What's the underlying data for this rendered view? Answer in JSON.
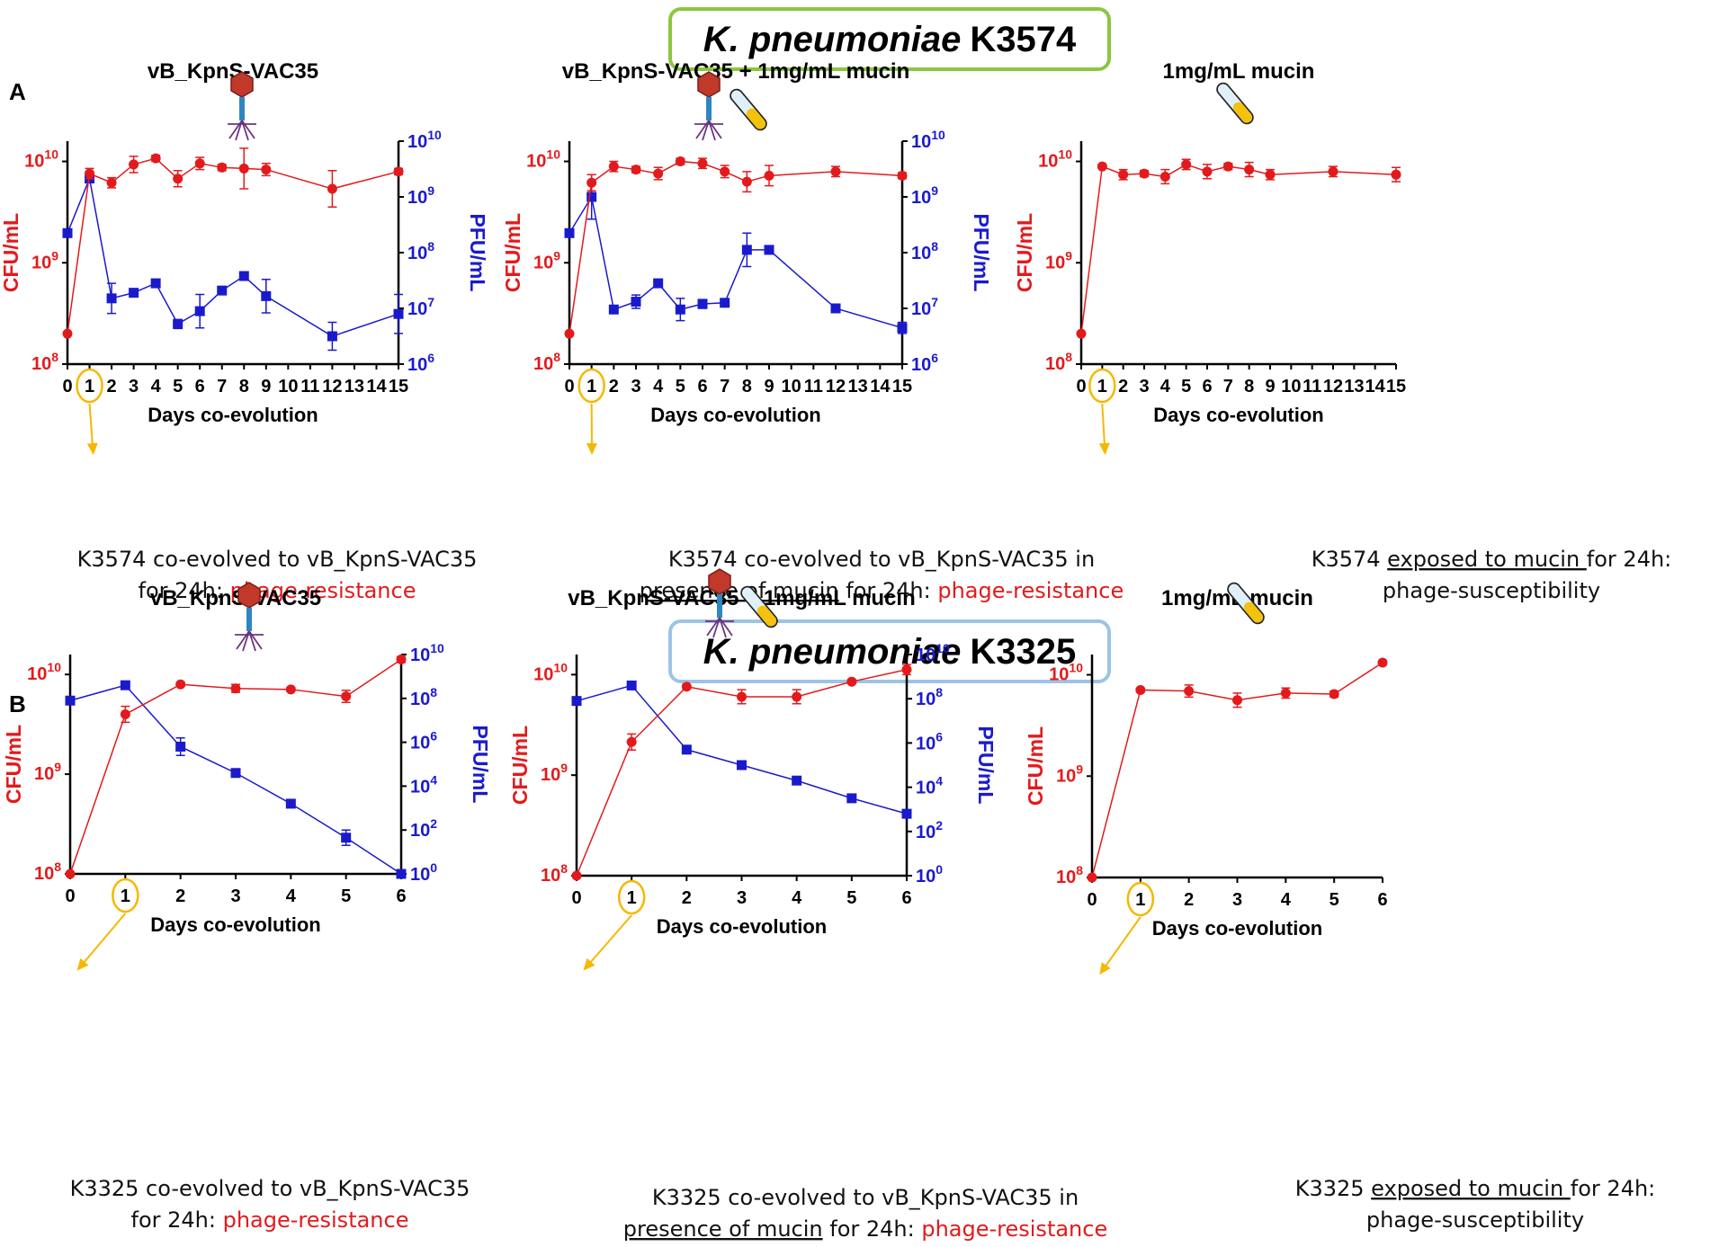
{
  "strain_titles": [
    {
      "italic": "K. pneumoniae",
      "bold": "K3574",
      "border_color": "#8cc63f"
    },
    {
      "italic": "K. pneumoniae",
      "bold": "K3325",
      "border_color": "#9dc3e6"
    }
  ],
  "panel_labels": [
    "A",
    "B"
  ],
  "colors": {
    "cfu": "#e31a1c",
    "pfu": "#1a1acd",
    "highlight": "#f5b800",
    "green": "#3a8a1f"
  },
  "captions": [
    {
      "line1": "K3574 co-evolved to vB_KpnS-VAC35",
      "line2a": "for 24h: ",
      "line2b": "phage-resistance"
    },
    {
      "line1": "K3574 co-evolved to vB_KpnS-VAC35 in",
      "line2a": "presence of mucin",
      "line2b": " for 24h: ",
      "line2c": "phage-resistance"
    },
    {
      "line1a": "K3574 ",
      "line1b": "exposed to mucin ",
      "line1c": " for 24h:",
      "line2": "phage-susceptibility"
    },
    {
      "line1": "K3325 co-evolved to vB_KpnS-VAC35",
      "line2a": "for 24h: ",
      "line2b": "phage-resistance"
    },
    {
      "line1": "K3325 co-evolved to vB_KpnS-VAC35 in",
      "line2a": "presence of mucin",
      "line2b": " for 24h: ",
      "line2c": "phage-resistance"
    },
    {
      "line1a": "K3325 ",
      "line1b": "exposed to mucin ",
      "line1c": " for 24h:",
      "line2": "phage-susceptibility"
    }
  ],
  "chart_data": [
    {
      "type": "line",
      "title": "vB_KpnS-VAC35",
      "xlabel": "Days co-evolution",
      "ylabel": "CFU/mL",
      "y2label": "PFU/mL",
      "xlim": [
        0,
        15
      ],
      "xticks": [
        0,
        1,
        2,
        3,
        4,
        5,
        6,
        7,
        8,
        9,
        10,
        11,
        12,
        13,
        14,
        15
      ],
      "ylim_log10": [
        8,
        10.2
      ],
      "yticks_log10": [
        8,
        9,
        10
      ],
      "y2lim_log10": [
        6,
        10
      ],
      "y2ticks_log10": [
        6,
        7,
        8,
        9,
        10
      ],
      "highlight_x": 1,
      "series": [
        {
          "name": "CFU/mL",
          "axis": "left",
          "marker": "circle",
          "x": [
            0,
            1,
            2,
            3,
            4,
            5,
            6,
            7,
            8,
            9,
            12,
            15
          ],
          "log10": [
            8.3,
            9.88,
            9.79,
            9.97,
            10.03,
            9.83,
            9.98,
            9.94,
            9.93,
            9.92,
            9.73,
            9.9
          ],
          "err": [
            0,
            0.05,
            0.05,
            0.08,
            0.03,
            0.08,
            0.06,
            0.03,
            0.2,
            0.06,
            0.18,
            0.03
          ]
        },
        {
          "name": "PFU/mL",
          "axis": "right",
          "marker": "square",
          "x": [
            0,
            1,
            2,
            3,
            4,
            5,
            6,
            7,
            8,
            9,
            12,
            15
          ],
          "log10": [
            8.35,
            9.33,
            7.18,
            7.28,
            7.45,
            6.72,
            6.95,
            7.32,
            7.58,
            7.22,
            6.5,
            6.9
          ],
          "err": [
            0,
            0.05,
            0.27,
            0.05,
            0.05,
            0.08,
            0.3,
            0.05,
            0.05,
            0.3,
            0.25,
            0.35
          ]
        }
      ]
    },
    {
      "type": "line",
      "title": "vB_KpnS-VAC35 + 1mg/mL mucin",
      "xlabel": "Days co-evolution",
      "ylabel": "CFU/mL",
      "y2label": "PFU/mL",
      "xlim": [
        0,
        15
      ],
      "xticks": [
        0,
        1,
        2,
        3,
        4,
        5,
        6,
        7,
        8,
        9,
        10,
        11,
        12,
        13,
        14,
        15
      ],
      "ylim_log10": [
        8,
        10.2
      ],
      "yticks_log10": [
        8,
        9,
        10
      ],
      "y2lim_log10": [
        6,
        10
      ],
      "y2ticks_log10": [
        6,
        7,
        8,
        9,
        10
      ],
      "highlight_x": 1,
      "series": [
        {
          "name": "CFU/mL",
          "axis": "left",
          "marker": "circle",
          "x": [
            0,
            1,
            2,
            3,
            4,
            5,
            6,
            7,
            8,
            9,
            12,
            15
          ],
          "log10": [
            8.3,
            9.79,
            9.95,
            9.92,
            9.88,
            10.0,
            9.98,
            9.9,
            9.8,
            9.86,
            9.9,
            9.86
          ],
          "err": [
            0,
            0.08,
            0.05,
            0.03,
            0.06,
            0.03,
            0.05,
            0.06,
            0.1,
            0.1,
            0.05,
            0.03
          ]
        },
        {
          "name": "PFU/mL",
          "axis": "right",
          "marker": "square",
          "x": [
            0,
            1,
            2,
            3,
            4,
            5,
            6,
            7,
            8,
            9,
            12,
            15
          ],
          "log10": [
            8.35,
            9.0,
            6.98,
            7.12,
            7.45,
            6.98,
            7.08,
            7.1,
            8.05,
            8.05,
            7.0,
            6.65
          ],
          "err": [
            0,
            0.4,
            0.05,
            0.12,
            0.05,
            0.2,
            0.08,
            0.05,
            0.3,
            0.05,
            0.05,
            0.1
          ]
        }
      ]
    },
    {
      "type": "line",
      "title": "1mg/mL mucin",
      "xlabel": "Days co-evolution",
      "ylabel": "CFU/mL",
      "xlim": [
        0,
        15
      ],
      "xticks": [
        0,
        1,
        2,
        3,
        4,
        5,
        6,
        7,
        8,
        9,
        10,
        11,
        12,
        13,
        14,
        15
      ],
      "ylim_log10": [
        8,
        10.2
      ],
      "yticks_log10": [
        8,
        9,
        10
      ],
      "highlight_x": 1,
      "series": [
        {
          "name": "CFU/mL",
          "axis": "left",
          "marker": "circle",
          "x": [
            0,
            1,
            2,
            3,
            4,
            5,
            6,
            7,
            8,
            9,
            12,
            15
          ],
          "log10": [
            8.3,
            9.95,
            9.87,
            9.88,
            9.85,
            9.97,
            9.9,
            9.95,
            9.92,
            9.87,
            9.9,
            9.87
          ],
          "err": [
            0,
            0.02,
            0.05,
            0.03,
            0.07,
            0.05,
            0.07,
            0.03,
            0.07,
            0.05,
            0.05,
            0.07
          ]
        }
      ]
    },
    {
      "type": "line",
      "title": "vB_KpnS-VAC35",
      "xlabel": "Days co-evolution",
      "ylabel": "CFU/mL",
      "y2label": "PFU/mL",
      "xlim": [
        0,
        6
      ],
      "xticks": [
        0,
        1,
        2,
        3,
        4,
        5,
        6
      ],
      "ylim_log10": [
        8,
        10.2
      ],
      "yticks_log10": [
        8,
        9,
        10
      ],
      "y2lim_log10": [
        0,
        10
      ],
      "y2ticks_log10": [
        0,
        2,
        4,
        6,
        8,
        10
      ],
      "highlight_x": 1,
      "series": [
        {
          "name": "CFU/mL",
          "axis": "left",
          "marker": "circle",
          "x": [
            0,
            1,
            2,
            3,
            4,
            5,
            6
          ],
          "log10": [
            8.0,
            9.6,
            9.9,
            9.86,
            9.85,
            9.78,
            10.15
          ],
          "err": [
            0,
            0.08,
            0.02,
            0.04,
            0.02,
            0.06,
            0.03
          ]
        },
        {
          "name": "PFU/mL",
          "axis": "right",
          "marker": "square",
          "x": [
            0,
            1,
            2,
            3,
            4,
            5,
            6
          ],
          "log10": [
            7.9,
            8.6,
            5.8,
            4.6,
            3.2,
            1.65,
            0.0
          ],
          "err": [
            0,
            0.05,
            0.4,
            0.05,
            0.15,
            0.35,
            0
          ]
        }
      ]
    },
    {
      "type": "line",
      "title": "vB_KpnS-VAC35 + 1mg/mL mucin",
      "xlabel": "Days co-evolution",
      "ylabel": "CFU/mL",
      "y2label": "PFU/mL",
      "xlim": [
        0,
        6
      ],
      "xticks": [
        0,
        1,
        2,
        3,
        4,
        5,
        6
      ],
      "ylim_log10": [
        8,
        10.2
      ],
      "yticks_log10": [
        8,
        9,
        10
      ],
      "y2lim_log10": [
        0,
        10
      ],
      "y2ticks_log10": [
        0,
        2,
        4,
        6,
        8,
        10
      ],
      "highlight_x": 1,
      "series": [
        {
          "name": "CFU/mL",
          "axis": "left",
          "marker": "circle",
          "x": [
            0,
            1,
            2,
            3,
            4,
            5,
            6
          ],
          "log10": [
            8.0,
            9.33,
            9.88,
            9.78,
            9.78,
            9.93,
            10.05
          ],
          "err": [
            0,
            0.08,
            0.02,
            0.07,
            0.07,
            0.02,
            0.05
          ]
        },
        {
          "name": "PFU/mL",
          "axis": "right",
          "marker": "square",
          "x": [
            0,
            1,
            2,
            3,
            4,
            5,
            6
          ],
          "log10": [
            7.9,
            8.6,
            5.7,
            5.0,
            4.3,
            3.5,
            2.8
          ],
          "err": [
            0,
            0.05,
            0.05,
            0.05,
            0.05,
            0.05,
            0.05
          ]
        }
      ]
    },
    {
      "type": "line",
      "title": "1mg/mL mucin",
      "xlabel": "Days co-evolution",
      "ylabel": "CFU/mL",
      "xlim": [
        0,
        6
      ],
      "xticks": [
        0,
        1,
        2,
        3,
        4,
        5,
        6
      ],
      "ylim_log10": [
        8,
        10.2
      ],
      "yticks_log10": [
        8,
        9,
        10
      ],
      "highlight_x": 1,
      "series": [
        {
          "name": "CFU/mL",
          "axis": "left",
          "marker": "circle",
          "x": [
            0,
            1,
            2,
            3,
            4,
            5,
            6
          ],
          "log10": [
            8.0,
            9.85,
            9.84,
            9.75,
            9.82,
            9.81,
            10.12
          ],
          "err": [
            0,
            0.02,
            0.06,
            0.07,
            0.05,
            0.03,
            0.02
          ]
        }
      ]
    }
  ]
}
